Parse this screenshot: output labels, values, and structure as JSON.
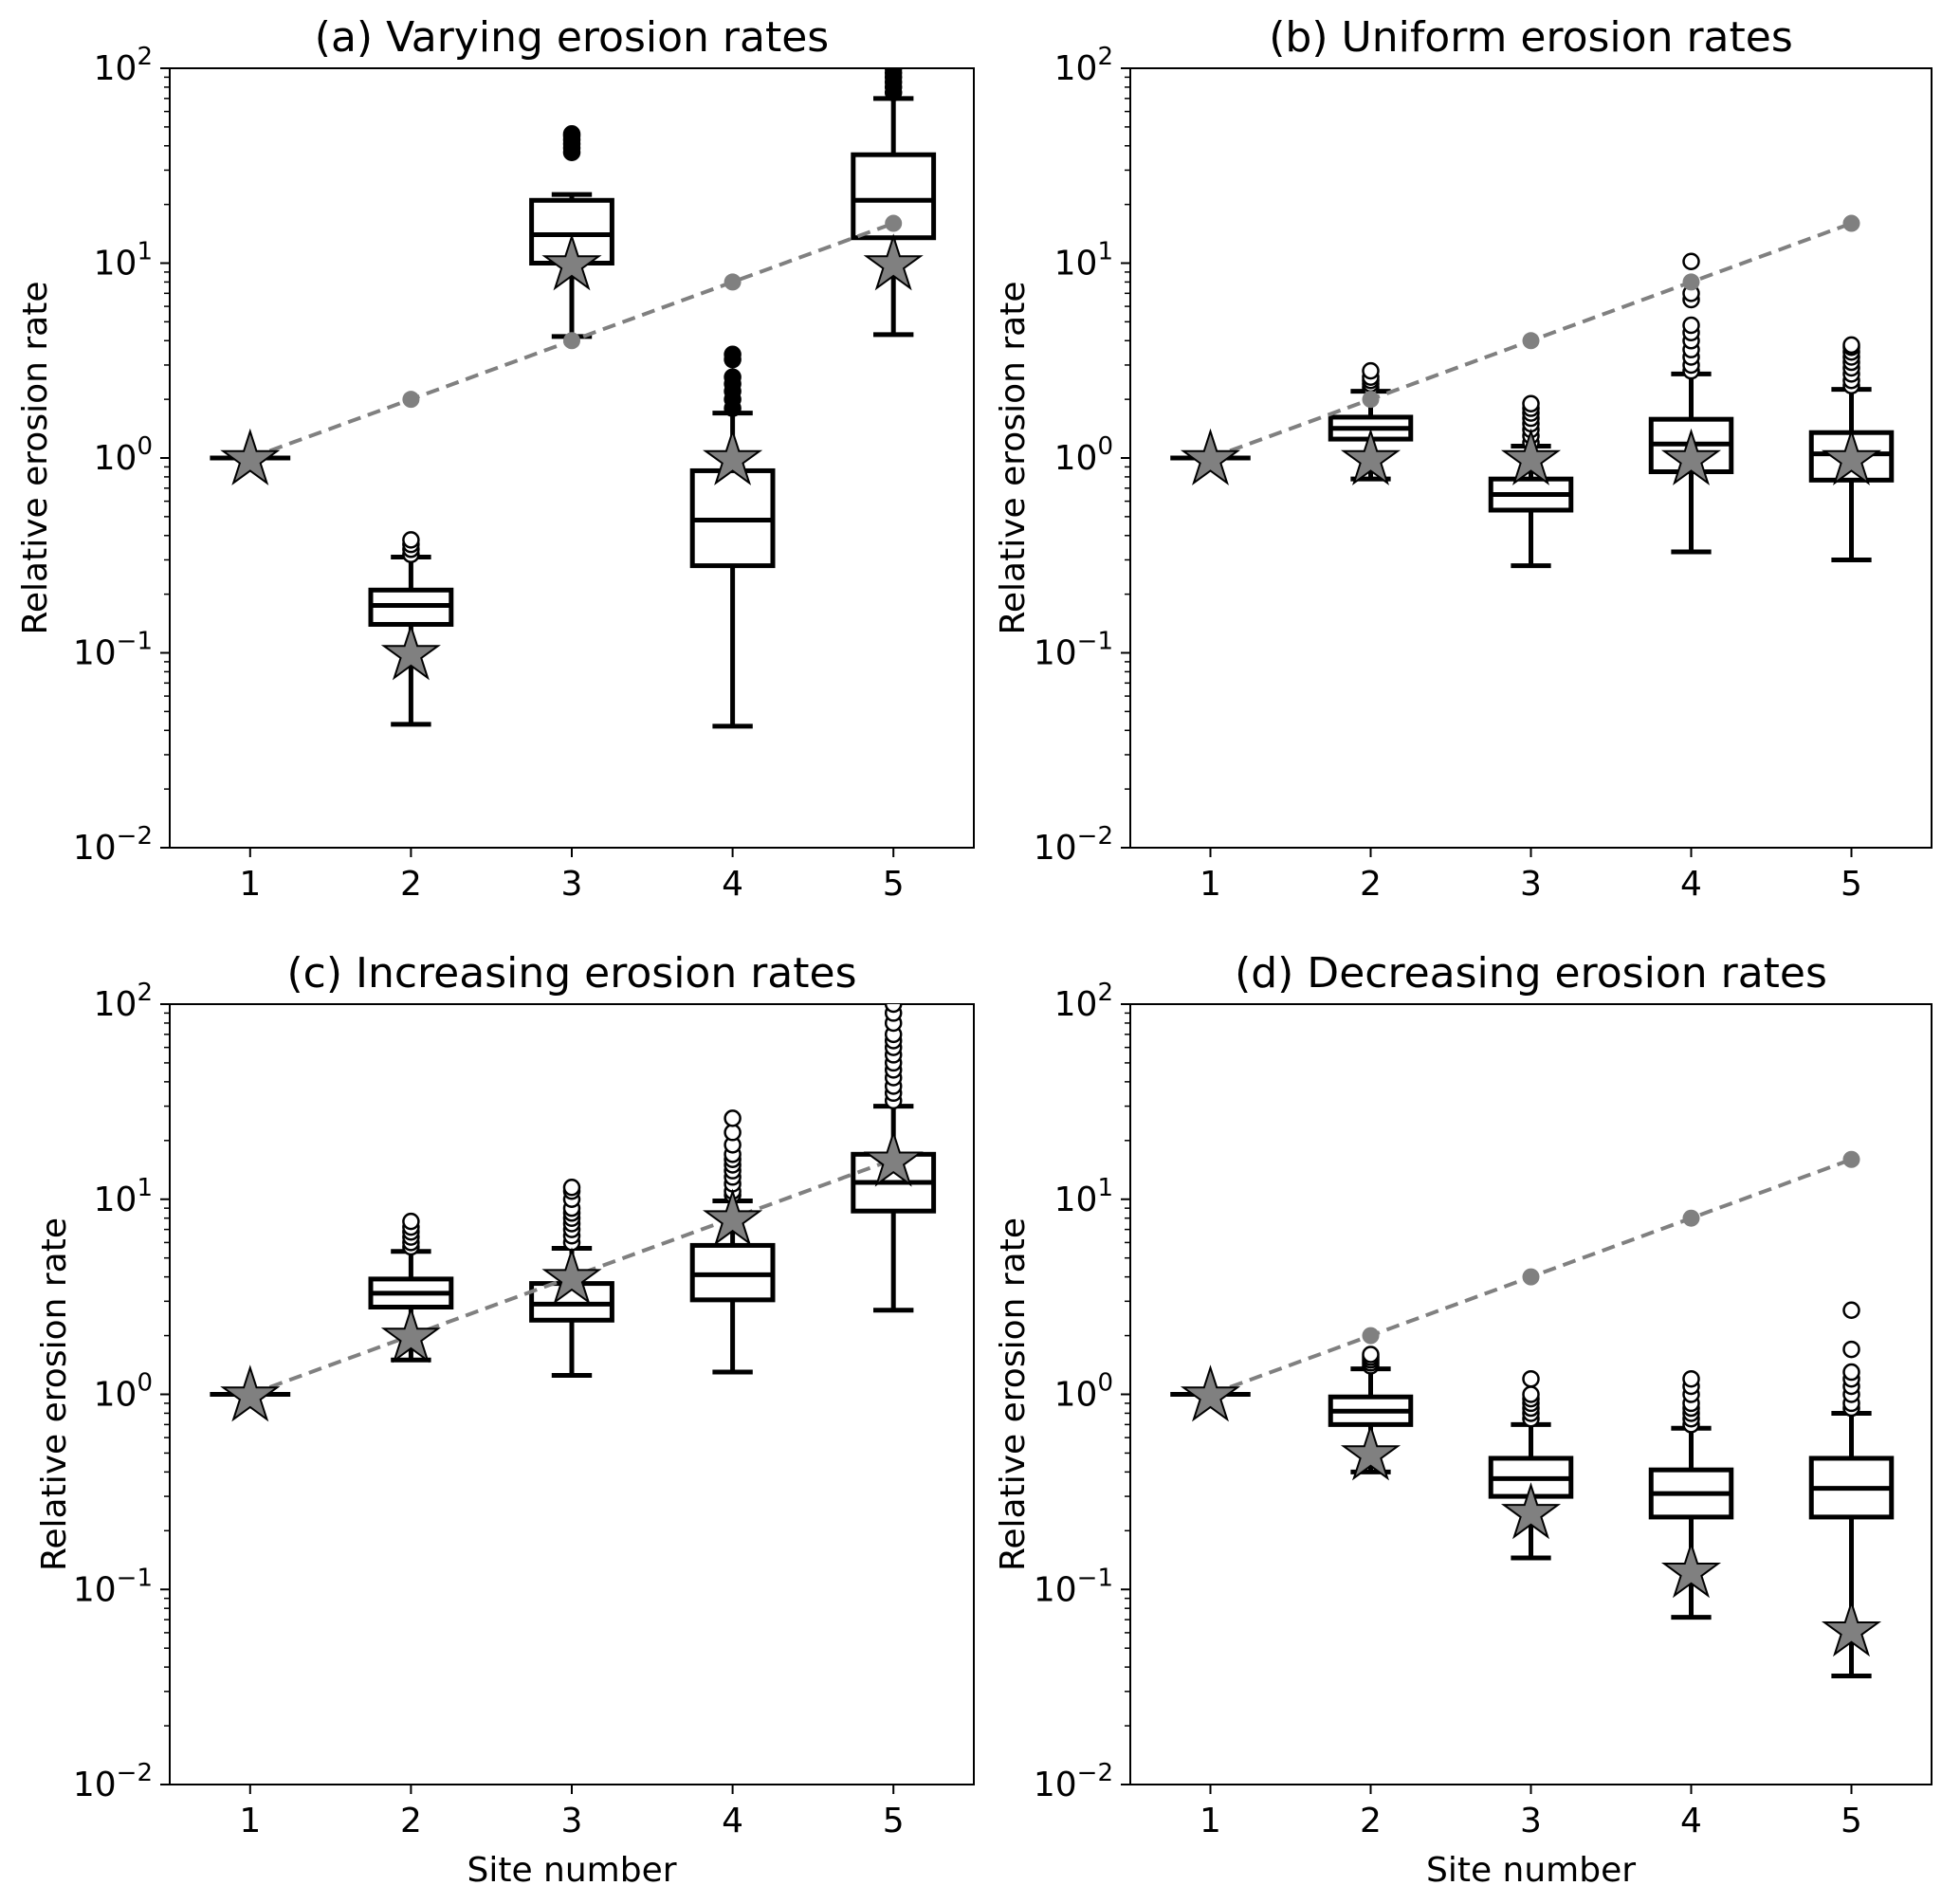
{
  "chart_data": [
    {
      "type": "box",
      "panel": "a",
      "title": "(a) Varying erosion rates",
      "xlabel": "",
      "ylabel": "Relative erosion rate",
      "yscale": "log",
      "ylim": [
        0.01,
        100
      ],
      "yticks": [
        {
          "base": "10",
          "exp": "−2"
        },
        {
          "base": "10",
          "exp": "−1"
        },
        {
          "base": "10",
          "exp": "0"
        },
        {
          "base": "10",
          "exp": "1"
        },
        {
          "base": "10",
          "exp": "2"
        }
      ],
      "categories": [
        "1",
        "2",
        "3",
        "4",
        "5"
      ],
      "boxes": [
        {
          "site": 1,
          "whislo": 1,
          "q1": 1,
          "med": 1,
          "q3": 1,
          "whishi": 1,
          "fliers": [],
          "filled_fliers": false
        },
        {
          "site": 2,
          "whislo": 0.043,
          "q1": 0.14,
          "med": 0.175,
          "q3": 0.21,
          "whishi": 0.31,
          "fliers": [
            0.32,
            0.34,
            0.36,
            0.38
          ],
          "filled_fliers": false
        },
        {
          "site": 3,
          "whislo": 4.2,
          "q1": 10,
          "med": 14,
          "q3": 21,
          "whishi": 22.5,
          "fliers": [
            37,
            39,
            41,
            43,
            45,
            46
          ],
          "filled_fliers": true
        },
        {
          "site": 4,
          "whislo": 0.042,
          "q1": 0.28,
          "med": 0.48,
          "q3": 0.86,
          "whishi": 1.7,
          "fliers": [
            1.8,
            2.0,
            2.2,
            2.4,
            2.6,
            3.2,
            3.4
          ],
          "filled_fliers": true
        },
        {
          "site": 5,
          "whislo": 4.3,
          "q1": 13.5,
          "med": 21,
          "q3": 36,
          "whishi": 70,
          "fliers": [
            75,
            80,
            85,
            90,
            95,
            100
          ],
          "filled_fliers": true
        }
      ],
      "stars": [
        1,
        0.1,
        10,
        1,
        10
      ],
      "reference_line": {
        "x": [
          1,
          2,
          3,
          4,
          5
        ],
        "y": [
          1,
          2,
          4,
          8,
          16
        ],
        "style": "dashed",
        "color": "#808080"
      }
    },
    {
      "type": "box",
      "panel": "b",
      "title": "(b) Uniform erosion rates",
      "xlabel": "",
      "ylabel": "Relative erosion rate",
      "yscale": "log",
      "ylim": [
        0.01,
        100
      ],
      "yticks": [
        {
          "base": "10",
          "exp": "−2"
        },
        {
          "base": "10",
          "exp": "−1"
        },
        {
          "base": "10",
          "exp": "0"
        },
        {
          "base": "10",
          "exp": "1"
        },
        {
          "base": "10",
          "exp": "2"
        }
      ],
      "categories": [
        "1",
        "2",
        "3",
        "4",
        "5"
      ],
      "boxes": [
        {
          "site": 1,
          "whislo": 1,
          "q1": 1,
          "med": 1,
          "q3": 1,
          "whishi": 1,
          "fliers": [],
          "filled_fliers": false
        },
        {
          "site": 2,
          "whislo": 0.78,
          "q1": 1.25,
          "med": 1.42,
          "q3": 1.62,
          "whishi": 2.2,
          "fliers": [
            2.3,
            2.4,
            2.5,
            2.6,
            2.8
          ],
          "filled_fliers": false
        },
        {
          "site": 3,
          "whislo": 0.28,
          "q1": 0.54,
          "med": 0.65,
          "q3": 0.78,
          "whishi": 1.15,
          "fliers": [
            1.2,
            1.3,
            1.4,
            1.5,
            1.6,
            1.7,
            1.8,
            1.9
          ],
          "filled_fliers": false
        },
        {
          "site": 4,
          "whislo": 0.33,
          "q1": 0.85,
          "med": 1.18,
          "q3": 1.58,
          "whishi": 2.7,
          "fliers": [
            2.8,
            3.0,
            3.3,
            3.6,
            4.0,
            4.4,
            4.8,
            6.5,
            7.0,
            10.2
          ],
          "filled_fliers": false
        },
        {
          "site": 5,
          "whislo": 0.3,
          "q1": 0.77,
          "med": 1.05,
          "q3": 1.35,
          "whishi": 2.25,
          "fliers": [
            2.35,
            2.5,
            2.7,
            2.9,
            3.1,
            3.3,
            3.5,
            3.7,
            3.8
          ],
          "filled_fliers": false
        }
      ],
      "stars": [
        1,
        1,
        1,
        1,
        1
      ],
      "reference_line": {
        "x": [
          1,
          2,
          3,
          4,
          5
        ],
        "y": [
          1,
          2,
          4,
          8,
          16
        ],
        "style": "dashed",
        "color": "#808080"
      }
    },
    {
      "type": "box",
      "panel": "c",
      "title": "(c) Increasing erosion rates",
      "xlabel": "Site number",
      "ylabel": "Relative erosion rate",
      "yscale": "log",
      "ylim": [
        0.01,
        100
      ],
      "yticks": [
        {
          "base": "10",
          "exp": "−2"
        },
        {
          "base": "10",
          "exp": "−1"
        },
        {
          "base": "10",
          "exp": "0"
        },
        {
          "base": "10",
          "exp": "1"
        },
        {
          "base": "10",
          "exp": "2"
        }
      ],
      "categories": [
        "1",
        "2",
        "3",
        "4",
        "5"
      ],
      "boxes": [
        {
          "site": 1,
          "whislo": 1,
          "q1": 1,
          "med": 1,
          "q3": 1,
          "whishi": 1,
          "fliers": [],
          "filled_fliers": false
        },
        {
          "site": 2,
          "whislo": 1.5,
          "q1": 2.8,
          "med": 3.3,
          "q3": 3.9,
          "whishi": 5.4,
          "fliers": [
            5.7,
            6.0,
            6.4,
            6.8,
            7.2,
            7.7
          ],
          "filled_fliers": false
        },
        {
          "site": 3,
          "whislo": 1.25,
          "q1": 2.4,
          "med": 2.9,
          "q3": 3.7,
          "whishi": 5.6,
          "fliers": [
            6,
            6.5,
            7,
            7.5,
            8,
            8.5,
            9,
            10,
            11,
            11.5
          ],
          "filled_fliers": false
        },
        {
          "site": 4,
          "whislo": 1.3,
          "q1": 3.05,
          "med": 4.1,
          "q3": 5.8,
          "whishi": 9.8,
          "fliers": [
            10.5,
            11,
            12,
            13,
            14,
            15,
            16,
            17,
            19,
            22,
            26
          ],
          "filled_fliers": false
        },
        {
          "site": 5,
          "whislo": 2.7,
          "q1": 8.7,
          "med": 12.2,
          "q3": 17,
          "whishi": 30,
          "fliers": [
            32,
            35,
            38,
            42,
            46,
            50,
            55,
            60,
            65,
            70,
            80,
            90,
            100
          ],
          "filled_fliers": false
        }
      ],
      "stars": [
        1,
        2,
        4,
        8,
        16
      ],
      "reference_line": {
        "x": [
          1,
          2,
          3,
          4,
          5
        ],
        "y": [
          1,
          2,
          4,
          8,
          16
        ],
        "style": "dashed",
        "color": "#808080"
      }
    },
    {
      "type": "box",
      "panel": "d",
      "title": "(d) Decreasing erosion rates",
      "xlabel": "Site number",
      "ylabel": "Relative erosion rate",
      "yscale": "log",
      "ylim": [
        0.01,
        100
      ],
      "yticks": [
        {
          "base": "10",
          "exp": "−2"
        },
        {
          "base": "10",
          "exp": "−1"
        },
        {
          "base": "10",
          "exp": "0"
        },
        {
          "base": "10",
          "exp": "1"
        },
        {
          "base": "10",
          "exp": "2"
        }
      ],
      "categories": [
        "1",
        "2",
        "3",
        "4",
        "5"
      ],
      "boxes": [
        {
          "site": 1,
          "whislo": 1,
          "q1": 1,
          "med": 1,
          "q3": 1,
          "whishi": 1,
          "fliers": [],
          "filled_fliers": false
        },
        {
          "site": 2,
          "whislo": 0.4,
          "q1": 0.7,
          "med": 0.82,
          "q3": 0.97,
          "whishi": 1.35,
          "fliers": [
            1.4,
            1.45,
            1.5,
            1.55,
            1.6
          ],
          "filled_fliers": false
        },
        {
          "site": 3,
          "whislo": 0.145,
          "q1": 0.3,
          "med": 0.37,
          "q3": 0.47,
          "whishi": 0.7,
          "fliers": [
            0.75,
            0.8,
            0.85,
            0.9,
            0.95,
            1.0,
            1.2
          ],
          "filled_fliers": false
        },
        {
          "site": 4,
          "whislo": 0.072,
          "q1": 0.235,
          "med": 0.31,
          "q3": 0.41,
          "whishi": 0.67,
          "fliers": [
            0.7,
            0.75,
            0.8,
            0.85,
            0.9,
            1.0,
            1.1,
            1.2
          ],
          "filled_fliers": false
        },
        {
          "site": 5,
          "whislo": 0.036,
          "q1": 0.235,
          "med": 0.33,
          "q3": 0.47,
          "whishi": 0.8,
          "fliers": [
            0.85,
            0.9,
            1.0,
            1.1,
            1.2,
            1.3,
            1.7,
            2.7
          ],
          "filled_fliers": false
        }
      ],
      "stars": [
        1,
        0.5,
        0.25,
        0.125,
        0.0625
      ],
      "reference_line": {
        "x": [
          1,
          2,
          3,
          4,
          5
        ],
        "y": [
          1,
          2,
          4,
          8,
          16
        ],
        "style": "dashed",
        "color": "#808080"
      }
    }
  ],
  "colors": {
    "box": "#000000",
    "star_fill": "#808080",
    "reference": "#808080"
  }
}
